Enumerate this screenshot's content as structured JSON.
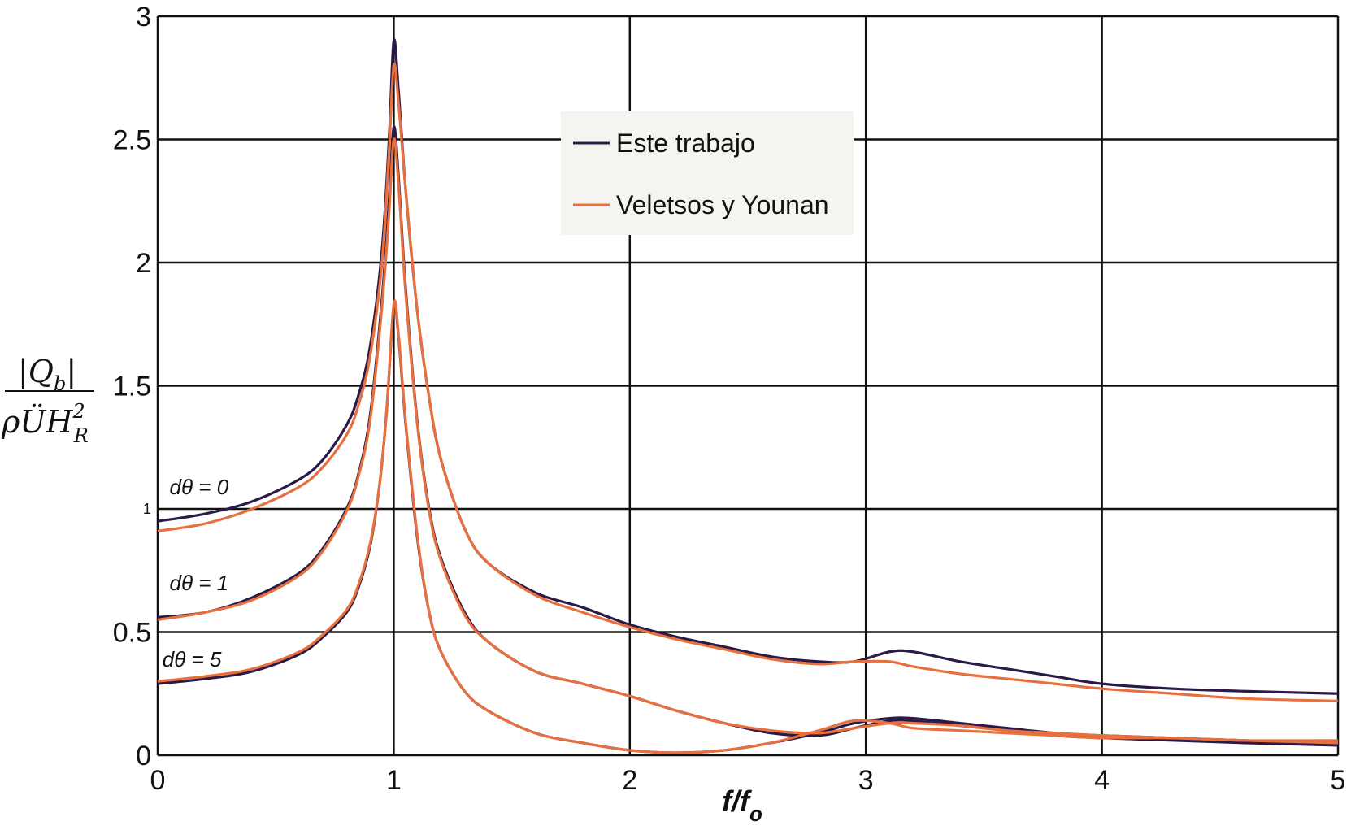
{
  "chart_data": {
    "type": "line",
    "xlabel": "f/f",
    "xlabel_sub": "o",
    "ylabel": {
      "numerator": "|Q",
      "numerator_sub": "b",
      "numerator_end": "|",
      "denominator": "ρÜH",
      "denominator_sup": "2",
      "denominator_sub": "R"
    },
    "xlim": [
      0,
      5
    ],
    "ylim": [
      0,
      3
    ],
    "xticks": [
      0,
      1,
      2,
      3,
      4,
      5
    ],
    "xtick_labels": [
      "0",
      "1",
      "2",
      "3",
      "4",
      "5"
    ],
    "yticks": [
      0,
      0.5,
      1,
      1.5,
      2,
      2.5,
      3
    ],
    "ytick_labels": [
      "0",
      "0.5",
      "1",
      "1.5",
      "2",
      "2.5",
      "3"
    ],
    "grid": true,
    "legend_placement": "top-center",
    "legend": [
      {
        "label": "Este trabajo",
        "color": "#2b1a47"
      },
      {
        "label": "Veletsos y Younan",
        "color": "#e8703e"
      }
    ],
    "annotations": [
      {
        "text": "dθ = 0",
        "x": 0.05,
        "y": 1.06
      },
      {
        "text": "dθ = 1",
        "x": 0.05,
        "y": 0.67
      },
      {
        "text": "dθ = 5",
        "x": 0.02,
        "y": 0.36
      }
    ],
    "series": [
      {
        "name": "Este trabajo",
        "group": "dθ = 0",
        "color": "#2b1a47",
        "x": [
          0,
          0.2,
          0.4,
          0.6,
          0.7,
          0.8,
          0.85,
          0.9,
          0.95,
          0.98,
          1.0,
          1.02,
          1.05,
          1.1,
          1.15,
          1.2,
          1.3,
          1.4,
          1.6,
          1.8,
          2.0,
          2.2,
          2.4,
          2.6,
          2.8,
          2.95,
          3.1,
          3.2,
          3.4,
          3.6,
          3.8,
          4.0,
          4.3,
          4.6,
          5.0
        ],
        "y": [
          0.95,
          0.98,
          1.03,
          1.12,
          1.2,
          1.34,
          1.46,
          1.66,
          2.05,
          2.5,
          2.9,
          2.7,
          2.3,
          1.8,
          1.45,
          1.2,
          0.92,
          0.78,
          0.66,
          0.6,
          0.53,
          0.48,
          0.44,
          0.4,
          0.38,
          0.38,
          0.42,
          0.42,
          0.38,
          0.35,
          0.32,
          0.29,
          0.27,
          0.26,
          0.25
        ]
      },
      {
        "name": "Veletsos y Younan",
        "group": "dθ = 0",
        "color": "#e8703e",
        "x": [
          0,
          0.2,
          0.4,
          0.6,
          0.7,
          0.8,
          0.85,
          0.9,
          0.95,
          0.98,
          1.0,
          1.02,
          1.05,
          1.1,
          1.15,
          1.2,
          1.3,
          1.4,
          1.6,
          1.8,
          2.0,
          2.2,
          2.4,
          2.6,
          2.8,
          2.95,
          3.1,
          3.2,
          3.4,
          3.6,
          3.8,
          4.0,
          4.3,
          4.6,
          5.0
        ],
        "y": [
          0.91,
          0.94,
          1.0,
          1.09,
          1.17,
          1.3,
          1.42,
          1.62,
          2.0,
          2.45,
          2.8,
          2.65,
          2.3,
          1.8,
          1.45,
          1.2,
          0.92,
          0.78,
          0.65,
          0.58,
          0.52,
          0.47,
          0.43,
          0.39,
          0.37,
          0.38,
          0.38,
          0.36,
          0.33,
          0.31,
          0.29,
          0.27,
          0.25,
          0.23,
          0.22
        ]
      },
      {
        "name": "Este trabajo",
        "group": "dθ = 1",
        "color": "#2b1a47",
        "x": [
          0,
          0.2,
          0.4,
          0.6,
          0.7,
          0.8,
          0.85,
          0.9,
          0.95,
          0.98,
          1.0,
          1.02,
          1.05,
          1.1,
          1.15,
          1.2,
          1.3,
          1.4,
          1.6,
          1.8,
          2.0,
          2.2,
          2.4,
          2.6,
          2.8,
          2.95,
          3.1,
          3.2,
          3.4,
          3.6,
          3.8,
          4.0,
          4.3,
          4.6,
          5.0
        ],
        "y": [
          0.56,
          0.58,
          0.64,
          0.74,
          0.84,
          1.0,
          1.14,
          1.38,
          1.85,
          2.25,
          2.55,
          2.35,
          1.9,
          1.35,
          1.0,
          0.8,
          0.58,
          0.46,
          0.34,
          0.29,
          0.24,
          0.18,
          0.13,
          0.09,
          0.08,
          0.11,
          0.14,
          0.14,
          0.12,
          0.1,
          0.08,
          0.07,
          0.06,
          0.05,
          0.04
        ]
      },
      {
        "name": "Veletsos y Younan",
        "group": "dθ = 1",
        "color": "#e8703e",
        "x": [
          0,
          0.2,
          0.4,
          0.6,
          0.7,
          0.8,
          0.85,
          0.9,
          0.95,
          0.98,
          1.0,
          1.02,
          1.05,
          1.1,
          1.15,
          1.2,
          1.3,
          1.4,
          1.6,
          1.8,
          2.0,
          2.2,
          2.4,
          2.6,
          2.8,
          2.95,
          3.1,
          3.2,
          3.4,
          3.6,
          3.8,
          4.0,
          4.3,
          4.6,
          5.0
        ],
        "y": [
          0.55,
          0.58,
          0.63,
          0.73,
          0.83,
          0.99,
          1.13,
          1.36,
          1.82,
          2.2,
          2.5,
          2.32,
          1.88,
          1.34,
          0.99,
          0.79,
          0.57,
          0.46,
          0.34,
          0.29,
          0.24,
          0.18,
          0.13,
          0.1,
          0.09,
          0.11,
          0.13,
          0.13,
          0.12,
          0.1,
          0.09,
          0.08,
          0.07,
          0.06,
          0.05
        ]
      },
      {
        "name": "Este trabajo",
        "group": "dθ = 5",
        "color": "#2b1a47",
        "x": [
          0,
          0.2,
          0.4,
          0.6,
          0.7,
          0.8,
          0.85,
          0.9,
          0.94,
          0.97,
          1.0,
          1.02,
          1.05,
          1.1,
          1.15,
          1.2,
          1.3,
          1.4,
          1.6,
          1.8,
          2.0,
          2.2,
          2.4,
          2.6,
          2.8,
          2.95,
          3.1,
          3.2,
          3.4,
          3.6,
          3.8,
          4.0,
          4.3,
          4.6,
          5.0
        ],
        "y": [
          0.29,
          0.31,
          0.34,
          0.41,
          0.48,
          0.58,
          0.68,
          0.85,
          1.1,
          1.4,
          1.82,
          1.7,
          1.35,
          0.88,
          0.58,
          0.42,
          0.26,
          0.18,
          0.09,
          0.05,
          0.02,
          0.01,
          0.02,
          0.05,
          0.09,
          0.13,
          0.15,
          0.15,
          0.13,
          0.11,
          0.09,
          0.08,
          0.07,
          0.06,
          0.05
        ]
      },
      {
        "name": "Veletsos y Younan",
        "group": "dθ = 5",
        "color": "#e8703e",
        "x": [
          0,
          0.2,
          0.4,
          0.6,
          0.7,
          0.8,
          0.85,
          0.9,
          0.94,
          0.97,
          1.0,
          1.02,
          1.05,
          1.1,
          1.15,
          1.2,
          1.3,
          1.4,
          1.6,
          1.8,
          2.0,
          2.2,
          2.4,
          2.6,
          2.8,
          2.95,
          3.1,
          3.2,
          3.4,
          3.6,
          3.8,
          4.0,
          4.3,
          4.6,
          5.0
        ],
        "y": [
          0.3,
          0.32,
          0.35,
          0.42,
          0.49,
          0.59,
          0.69,
          0.86,
          1.1,
          1.4,
          1.83,
          1.71,
          1.36,
          0.89,
          0.58,
          0.42,
          0.26,
          0.18,
          0.09,
          0.05,
          0.02,
          0.01,
          0.02,
          0.05,
          0.1,
          0.14,
          0.13,
          0.11,
          0.1,
          0.09,
          0.08,
          0.07,
          0.07,
          0.06,
          0.06
        ]
      }
    ]
  }
}
